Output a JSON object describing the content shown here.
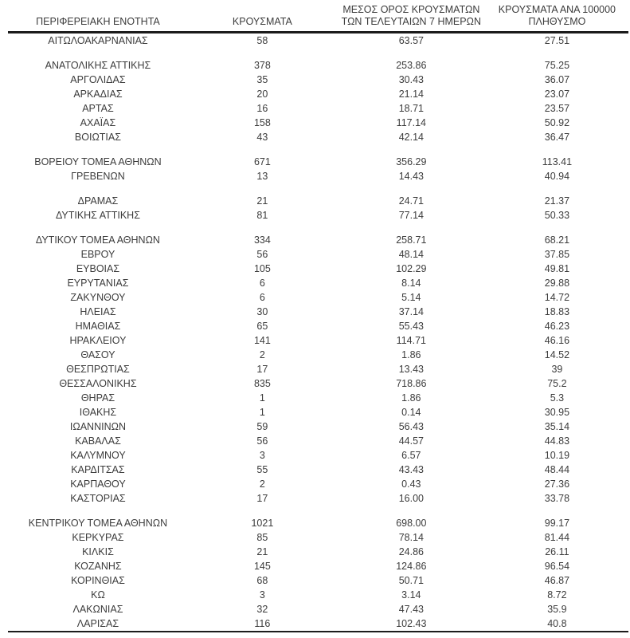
{
  "colors": {
    "background": "#ffffff",
    "text": "#3c3c3c",
    "rule": "#1c1c1c"
  },
  "table": {
    "header": {
      "col1": "ΠΕΡΙΦΕΡΕΙΑΚΗ ΕΝΟΤΗΤΑ",
      "col2": "ΚΡΟΥΣΜΑΤΑ",
      "col3_line1": "ΜΕΣΟΣ ΟΡΟΣ ΚΡΟΥΣΜΑΤΩΝ",
      "col3_line2": "ΤΩΝ ΤΕΛΕΥΤΑΙΩΝ 7 ΗΜΕΡΩΝ",
      "col4_line1": "ΚΡΟΥΣΜΑΤΑ ΑΝΑ 100000",
      "col4_line2": "ΠΛΗΘΥΣΜΟ"
    },
    "groups": [
      {
        "rows": [
          [
            "ΑΙΤΩΛΟΑΚΑΡΝΑΝΙΑΣ",
            "58",
            "63.57",
            "27.51"
          ]
        ]
      },
      {
        "rows": [
          [
            "ΑΝΑΤΟΛΙΚΗΣ ΑΤΤΙΚΗΣ",
            "378",
            "253.86",
            "75.25"
          ],
          [
            "ΑΡΓΟΛΙΔΑΣ",
            "35",
            "30.43",
            "36.07"
          ],
          [
            "ΑΡΚΑΔΙΑΣ",
            "20",
            "21.14",
            "23.07"
          ],
          [
            "ΑΡΤΑΣ",
            "16",
            "18.71",
            "23.57"
          ],
          [
            "ΑΧΑΪΑΣ",
            "158",
            "117.14",
            "50.92"
          ],
          [
            "ΒΟΙΩΤΙΑΣ",
            "43",
            "42.14",
            "36.47"
          ]
        ]
      },
      {
        "rows": [
          [
            "ΒΟΡΕΙΟΥ ΤΟΜΕΑ ΑΘΗΝΩΝ",
            "671",
            "356.29",
            "113.41"
          ],
          [
            "ΓΡΕΒΕΝΩΝ",
            "13",
            "14.43",
            "40.94"
          ]
        ]
      },
      {
        "rows": [
          [
            "ΔΡΑΜΑΣ",
            "21",
            "24.71",
            "21.37"
          ],
          [
            "ΔΥΤΙΚΗΣ ΑΤΤΙΚΗΣ",
            "81",
            "77.14",
            "50.33"
          ]
        ]
      },
      {
        "rows": [
          [
            "ΔΥΤΙΚΟΥ ΤΟΜΕΑ ΑΘΗΝΩΝ",
            "334",
            "258.71",
            "68.21"
          ],
          [
            "ΕΒΡΟΥ",
            "56",
            "48.14",
            "37.85"
          ],
          [
            "ΕΥΒΟΙΑΣ",
            "105",
            "102.29",
            "49.81"
          ],
          [
            "ΕΥΡΥΤΑΝΙΑΣ",
            "6",
            "8.14",
            "29.88"
          ],
          [
            "ΖΑΚΥΝΘΟΥ",
            "6",
            "5.14",
            "14.72"
          ],
          [
            "ΗΛΕΙΑΣ",
            "30",
            "37.14",
            "18.83"
          ],
          [
            "ΗΜΑΘΙΑΣ",
            "65",
            "55.43",
            "46.23"
          ],
          [
            "ΗΡΑΚΛΕΙΟΥ",
            "141",
            "114.71",
            "46.16"
          ],
          [
            "ΘΑΣΟΥ",
            "2",
            "1.86",
            "14.52"
          ],
          [
            "ΘΕΣΠΡΩΤΙΑΣ",
            "17",
            "13.43",
            "39"
          ],
          [
            "ΘΕΣΣΑΛΟΝΙΚΗΣ",
            "835",
            "718.86",
            "75.2"
          ],
          [
            "ΘΗΡΑΣ",
            "1",
            "1.86",
            "5.3"
          ],
          [
            "ΙΘΑΚΗΣ",
            "1",
            "0.14",
            "30.95"
          ],
          [
            "ΙΩΑΝΝΙΝΩΝ",
            "59",
            "56.43",
            "35.14"
          ],
          [
            "ΚΑΒΑΛΑΣ",
            "56",
            "44.57",
            "44.83"
          ],
          [
            "ΚΑΛΥΜΝΟΥ",
            "3",
            "6.57",
            "10.19"
          ],
          [
            "ΚΑΡΔΙΤΣΑΣ",
            "55",
            "43.43",
            "48.44"
          ],
          [
            "ΚΑΡΠΑΘΟΥ",
            "2",
            "0.43",
            "27.36"
          ],
          [
            "ΚΑΣΤΟΡΙΑΣ",
            "17",
            "16.00",
            "33.78"
          ]
        ]
      },
      {
        "rows": [
          [
            "ΚΕΝΤΡΙΚΟΥ ΤΟΜΕΑ ΑΘΗΝΩΝ",
            "1021",
            "698.00",
            "99.17"
          ],
          [
            "ΚΕΡΚΥΡΑΣ",
            "85",
            "78.14",
            "81.44"
          ],
          [
            "ΚΙΛΚΙΣ",
            "21",
            "24.86",
            "26.11"
          ],
          [
            "ΚΟΖΑΝΗΣ",
            "145",
            "124.86",
            "96.54"
          ],
          [
            "ΚΟΡΙΝΘΙΑΣ",
            "68",
            "50.71",
            "46.87"
          ],
          [
            "ΚΩ",
            "3",
            "3.14",
            "8.72"
          ],
          [
            "ΛΑΚΩΝΙΑΣ",
            "32",
            "47.43",
            "35.9"
          ],
          [
            "ΛΑΡΙΣΑΣ",
            "116",
            "102.43",
            "40.8"
          ]
        ]
      }
    ]
  }
}
